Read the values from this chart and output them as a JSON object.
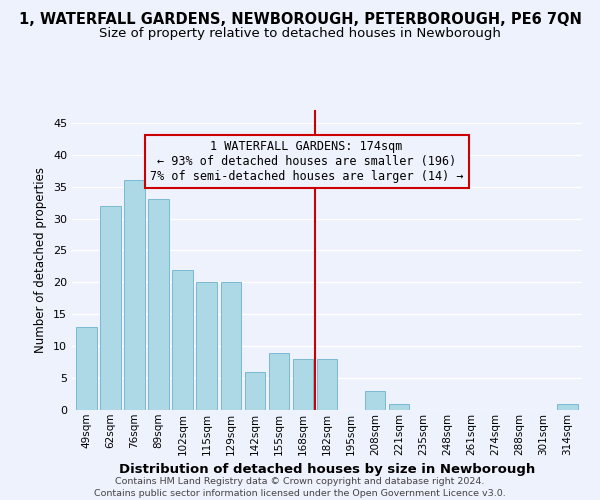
{
  "title": "1, WATERFALL GARDENS, NEWBOROUGH, PETERBOROUGH, PE6 7QN",
  "subtitle": "Size of property relative to detached houses in Newborough",
  "xlabel": "Distribution of detached houses by size in Newborough",
  "ylabel": "Number of detached properties",
  "footer_line1": "Contains HM Land Registry data © Crown copyright and database right 2024.",
  "footer_line2": "Contains public sector information licensed under the Open Government Licence v3.0.",
  "bar_labels": [
    "49sqm",
    "62sqm",
    "76sqm",
    "89sqm",
    "102sqm",
    "115sqm",
    "129sqm",
    "142sqm",
    "155sqm",
    "168sqm",
    "182sqm",
    "195sqm",
    "208sqm",
    "221sqm",
    "235sqm",
    "248sqm",
    "261sqm",
    "274sqm",
    "288sqm",
    "301sqm",
    "314sqm"
  ],
  "bar_values": [
    13,
    32,
    36,
    33,
    22,
    20,
    20,
    6,
    9,
    8,
    8,
    0,
    3,
    1,
    0,
    0,
    0,
    0,
    0,
    0,
    1
  ],
  "bar_color": "#add8e6",
  "bar_edge_color": "#7ab8d4",
  "vline_index": 9.5,
  "vline_color": "#cc0000",
  "annotation_title": "1 WATERFALL GARDENS: 174sqm",
  "annotation_line2": "← 93% of detached houses are smaller (196)",
  "annotation_line3": "7% of semi-detached houses are larger (14) →",
  "annotation_box_edge_color": "#cc0000",
  "ylim": [
    0,
    47
  ],
  "yticks": [
    0,
    5,
    10,
    15,
    20,
    25,
    30,
    35,
    40,
    45
  ],
  "background_color": "#eef2fc",
  "grid_color": "#ffffff",
  "title_fontsize": 10.5,
  "subtitle_fontsize": 9.5,
  "ylabel_fontsize": 8.5,
  "xlabel_fontsize": 9.5
}
